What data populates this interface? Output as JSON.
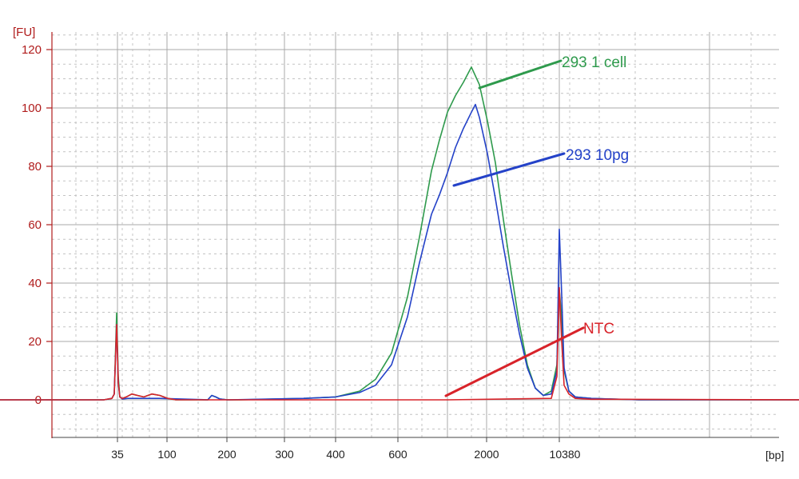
{
  "chart_data": {
    "type": "line",
    "y_unit": "[FU]",
    "x_unit": "[bp]",
    "ylim": [
      -12,
      125
    ],
    "yticks": [
      0,
      20,
      40,
      60,
      80,
      100,
      120
    ],
    "xticks": [
      "35",
      "100",
      "200",
      "300",
      "400",
      "600",
      "2000",
      "10380"
    ],
    "xlim_ref": [
      0,
      1010
    ],
    "grid": true,
    "colors": {
      "green": "#2e9a4c",
      "blue": "#2442c8",
      "red": "#d8232a",
      "axis": "#b01c1c"
    },
    "series": [
      {
        "name": "293 1 cell",
        "color": "#2e9a4c",
        "x": [
          0,
          130,
          140,
          143,
          146,
          148,
          150,
          153,
          158,
          165,
          172,
          180,
          190,
          200,
          210,
          220,
          240,
          260,
          265,
          270,
          275,
          285,
          300,
          380,
          420,
          450,
          470,
          490,
          510,
          525,
          540,
          550,
          560,
          570,
          580,
          590,
          600,
          610,
          620,
          630,
          640,
          650,
          660,
          670,
          680,
          690,
          697,
          700,
          703,
          706,
          712,
          720,
          740,
          760,
          800,
          900,
          1010
        ],
        "y": [
          0,
          0,
          0.5,
          2,
          30,
          8,
          1,
          0.5,
          1,
          2,
          1.5,
          1,
          2,
          1.5,
          0.5,
          0,
          0,
          0,
          1.5,
          1,
          0.3,
          0,
          0,
          0.5,
          1,
          3,
          7,
          16,
          35,
          56,
          78,
          89,
          99,
          104,
          109,
          114,
          108,
          96,
          81,
          62,
          43,
          26,
          12,
          4,
          1.5,
          3,
          12,
          38,
          28,
          10,
          3,
          1,
          0.5,
          0.3,
          0,
          0,
          0
        ]
      },
      {
        "name": "293 10pg",
        "color": "#2442c8",
        "x": [
          0,
          130,
          140,
          143,
          146,
          148,
          150,
          153,
          160,
          200,
          260,
          265,
          270,
          275,
          285,
          380,
          420,
          450,
          470,
          490,
          510,
          525,
          540,
          550,
          560,
          570,
          580,
          590,
          595,
          600,
          610,
          620,
          630,
          640,
          650,
          660,
          670,
          680,
          690,
          697,
          700,
          703,
          706,
          712,
          720,
          740,
          800,
          1010
        ],
        "y": [
          0,
          0,
          0.5,
          2,
          26,
          6,
          1,
          0.3,
          0.5,
          0.5,
          0,
          1.5,
          1,
          0.3,
          0,
          0.5,
          1,
          2.5,
          5,
          12,
          28,
          47,
          64,
          70,
          78,
          86,
          93,
          99,
          101,
          97,
          84,
          69,
          53,
          37,
          23,
          11,
          4,
          1.5,
          2,
          10,
          58,
          36,
          11,
          3,
          1,
          0.5,
          0,
          0
        ]
      },
      {
        "name": "NTC",
        "color": "#d8232a",
        "x": [
          0,
          130,
          140,
          143,
          146,
          148,
          150,
          153,
          158,
          165,
          172,
          180,
          190,
          200,
          210,
          220,
          280,
          560,
          690,
          697,
          700,
          703,
          706,
          712,
          720,
          740,
          1010
        ],
        "y": [
          0,
          0,
          0.5,
          2,
          26,
          6,
          1,
          0.5,
          1,
          2,
          1.5,
          1,
          2,
          1.5,
          0.5,
          0,
          0,
          0,
          0.5,
          8,
          38,
          20,
          5,
          2,
          0.5,
          0.2,
          0
        ]
      }
    ],
    "annotations": [
      {
        "text": "293 1 cell",
        "color": "#2e9a4c"
      },
      {
        "text": "293 10pg",
        "color": "#2442c8"
      },
      {
        "text": "NTC",
        "color": "#d8232a"
      }
    ]
  }
}
